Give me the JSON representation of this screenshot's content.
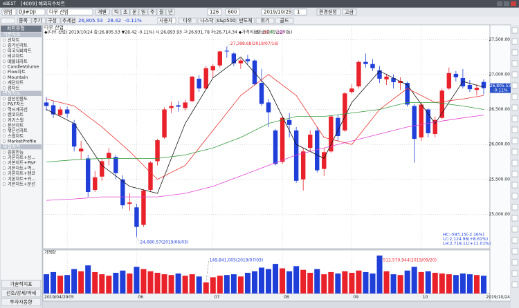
{
  "window": {
    "brand": "eBEST",
    "title": "[4009] 해외지수차트"
  },
  "toolbar": {
    "market": "영업",
    "code": "DJI#DJI",
    "name": "다우 산업",
    "mode": "개별",
    "periods": [
      "틱",
      "초",
      "분",
      "일",
      "주",
      "월",
      "년"
    ],
    "count": "126",
    "max": "600",
    "date": "2019/10/25",
    "unit": "1",
    "settings": "환경설정",
    "advanced": "고급",
    "tabs": [
      "등가표",
      "종목",
      "주기",
      "구성",
      "추세선"
    ],
    "price": "26,805.53",
    "change": "28.42",
    "change_pct": "-0.11%",
    "user": "사용자",
    "quick": [
      "다우",
      "나스닥",
      "s&p500",
      "반도체",
      "위기",
      "골드"
    ]
  },
  "sidebar": {
    "title": "차트유형",
    "groups": [
      {
        "name": "기본차트",
        "items": [
          "선차트",
          "종가선차트",
          "미국식바차트",
          "비교차트",
          "매물대차트",
          "CandleVolume",
          "Flow차트",
          "Mountain",
          "계단차트",
          "점차트"
        ]
      },
      {
        "name": "변형차트",
        "items": [
          "삼선전환도",
          "P&F차트",
          "역시계곡선",
          "렌코차트",
          "카기스윙",
          "분산차트",
          "꺾은선차트",
          "스윙차트",
          "MarketProfile"
        ]
      },
      {
        "name": "복합차트",
        "items": [
          "종합만능",
          "기본차트+삼...",
          "기본차트+P&F",
          "기본차트+역...",
          "기본차트+렌코",
          "기본차트+카...",
          "기본차트+분선"
        ]
      }
    ],
    "buttons": [
      "기술적지표",
      "선호/강세/약세",
      "투자자동향"
    ]
  },
  "chart_data": {
    "type": "candlestick",
    "title": "다우 산업",
    "header": "◆(다우 산업) 2019/10/24 종:26,805.53 ▼28.42 -0.11%) 시:26,893.93 고:26,931.78 저:26,714.34 ◆가격이동평균(종가,단순이동)",
    "ylim": [
      24530,
      27710
    ],
    "yticks": [
      {
        "value": 25000,
        "label": "25,000.00"
      },
      {
        "value": 25500,
        "label": "25,500.00"
      },
      {
        "value": 26000,
        "label": "26,000.00"
      },
      {
        "value": 26500,
        "label": "26,500.00"
      },
      {
        "value": 27000,
        "label": "27,000.00"
      },
      {
        "value": 27500,
        "label": "27,500.00"
      }
    ],
    "xlim": [
      -0.5,
      63.5
    ],
    "xticks": [
      {
        "value": 3,
        "label": "05"
      },
      {
        "value": 13,
        "label": "06"
      },
      {
        "value": 24,
        "label": "07"
      },
      {
        "value": 34,
        "label": "08"
      },
      {
        "value": 44,
        "label": "09"
      },
      {
        "value": 54,
        "label": "10"
      }
    ],
    "start_date": "2019/04/29",
    "end_date": "2019/10/24",
    "grid": true,
    "up_color": "#e8212b",
    "down_color": "#1f3fd8",
    "candles": [
      [
        26600,
        26680,
        26480,
        26550
      ],
      [
        26560,
        26620,
        26380,
        26430
      ],
      [
        26420,
        26540,
        26400,
        26500
      ],
      [
        26500,
        26540,
        26380,
        26440
      ],
      [
        26300,
        26350,
        25900,
        25970
      ],
      [
        25900,
        26050,
        25780,
        25940
      ],
      [
        25800,
        25850,
        25250,
        25320
      ],
      [
        25350,
        25620,
        25320,
        25530
      ],
      [
        25540,
        25800,
        25480,
        25760
      ],
      [
        25800,
        25950,
        25700,
        25880
      ],
      [
        25820,
        25850,
        25500,
        25590
      ],
      [
        25500,
        25560,
        25080,
        25130
      ],
      [
        25150,
        25300,
        25050,
        25170
      ],
      [
        25100,
        25150,
        24680.57,
        24820
      ],
      [
        24850,
        25360,
        24820,
        25340
      ],
      [
        25350,
        25760,
        25330,
        25740
      ],
      [
        25760,
        26080,
        25700,
        26060
      ],
      [
        26100,
        26530,
        26080,
        26500
      ],
      [
        26520,
        26610,
        26450,
        26550
      ],
      [
        26560,
        26620,
        26470,
        26540
      ],
      [
        26520,
        26640,
        26480,
        26600
      ],
      [
        26620,
        26980,
        26600,
        26970
      ],
      [
        26940,
        26990,
        26750,
        26800
      ],
      [
        26800,
        27120,
        26780,
        27090
      ],
      [
        27060,
        27150,
        26950,
        27120
      ],
      [
        27130,
        27340,
        27100,
        27330
      ],
      [
        27340,
        27398.68,
        27240,
        27330
      ],
      [
        27300,
        27320,
        27120,
        27160
      ],
      [
        27160,
        27230,
        27080,
        27200
      ],
      [
        27220,
        27280,
        27150,
        27190
      ],
      [
        27200,
        27220,
        26840,
        26860
      ],
      [
        26880,
        27080,
        26550,
        26580
      ],
      [
        26600,
        26650,
        26250,
        26460
      ],
      [
        26200,
        26220,
        25700,
        25720
      ],
      [
        25750,
        26400,
        25720,
        26380
      ],
      [
        26350,
        26450,
        26100,
        26280
      ],
      [
        26200,
        26250,
        25450,
        25480
      ],
      [
        25500,
        25950,
        25340,
        25900
      ],
      [
        25950,
        26200,
        25900,
        26140
      ],
      [
        26200,
        26250,
        25600,
        25630
      ],
      [
        25650,
        25950,
        25550,
        25890
      ],
      [
        25900,
        26420,
        25880,
        26400
      ],
      [
        26380,
        26420,
        26050,
        26120
      ],
      [
        26200,
        26750,
        26180,
        26730
      ],
      [
        26750,
        26860,
        26720,
        26800
      ],
      [
        26830,
        27200,
        26800,
        27180
      ],
      [
        27180,
        27300,
        27100,
        27150
      ],
      [
        27150,
        27220,
        27050,
        27090
      ],
      [
        27060,
        27120,
        26880,
        26940
      ],
      [
        26930,
        27010,
        26850,
        26970
      ],
      [
        26950,
        27000,
        26800,
        26890
      ],
      [
        26880,
        26960,
        26780,
        26910
      ],
      [
        26880,
        26900,
        26540,
        26570
      ],
      [
        26550,
        26580,
        25740,
        26080
      ],
      [
        26100,
        26600,
        26050,
        26570
      ],
      [
        26500,
        26520,
        26100,
        26160
      ],
      [
        26150,
        26400,
        26100,
        26350
      ],
      [
        26380,
        26800,
        26360,
        26770
      ],
      [
        26800,
        27100,
        26780,
        27020
      ],
      [
        27010,
        27050,
        26900,
        26960
      ],
      [
        26950,
        27080,
        26800,
        26830
      ],
      [
        26850,
        26920,
        26750,
        26790
      ],
      [
        26780,
        26860,
        26700,
        26810
      ],
      [
        26893.93,
        26931.78,
        26714.34,
        26805.53
      ]
    ],
    "ma": {
      "x": [
        0,
        4,
        8,
        12,
        16,
        20,
        24,
        28,
        32,
        36,
        40,
        44,
        48,
        52,
        56,
        60,
        63
      ],
      "series": [
        {
          "name": "5",
          "color": "#111111",
          "values": [
            26500,
            26300,
            25700,
            25400,
            25300,
            26300,
            26950,
            27250,
            26800,
            26000,
            25800,
            26600,
            27050,
            26850,
            26300,
            26900,
            26820
          ]
        },
        {
          "name": "20",
          "color": "#e83030",
          "values": [
            26650,
            26550,
            26250,
            25900,
            25500,
            25700,
            26200,
            26700,
            27000,
            26700,
            26100,
            26000,
            26500,
            26800,
            26600,
            26650,
            26700
          ]
        },
        {
          "name": "60",
          "color": "#2e9a3a",
          "values": [
            25750,
            25780,
            25800,
            25800,
            25800,
            25850,
            25950,
            26100,
            26300,
            26400,
            26400,
            26450,
            26500,
            26600,
            26600,
            26550,
            26500
          ]
        },
        {
          "name": "120",
          "color": "#e040d0",
          "values": [
            25200,
            25220,
            25250,
            25250,
            25250,
            25300,
            25400,
            25550,
            25700,
            25850,
            25950,
            26050,
            26150,
            26250,
            26320,
            26380,
            26420
          ]
        }
      ]
    },
    "annotations": [
      {
        "text": "27,398.68(2019/07/16)",
        "x": 26,
        "y": 27398.68
      },
      {
        "text": "24,680.57(2019/06/03)",
        "x": 13,
        "y": 24680.57
      }
    ],
    "last_label": "26,805.53",
    "last_pct": "-0.11%",
    "stats": [
      "HC:-593.15(-2.16%)",
      "LC:2,124.96(+8.61%)",
      "LH:2,718.11(+11.01%)"
    ],
    "volume": {
      "title": "거래량",
      "ylim": [
        0,
        560000000
      ],
      "values": [
        260000000,
        290000000,
        240000000,
        250000000,
        330000000,
        300000000,
        380000000,
        290000000,
        260000000,
        240000000,
        280000000,
        310000000,
        270000000,
        360000000,
        330000000,
        300000000,
        280000000,
        260000000,
        250000000,
        270000000,
        240000000,
        260000000,
        230000000,
        149841005,
        220000000,
        240000000,
        250000000,
        260000000,
        230000000,
        280000000,
        300000000,
        350000000,
        330000000,
        400000000,
        340000000,
        300000000,
        370000000,
        320000000,
        280000000,
        330000000,
        260000000,
        290000000,
        270000000,
        300000000,
        280000000,
        310000000,
        290000000,
        270000000,
        512570944,
        300000000,
        260000000,
        250000000,
        310000000,
        360000000,
        290000000,
        300000000,
        280000000,
        270000000,
        260000000,
        250000000,
        270000000,
        260000000,
        250000000,
        240000000
      ],
      "annotations": [
        {
          "text": "149,841,005(2019/07/03)",
          "x": 23
        },
        {
          "text": "512,570,944(2019/09/20)",
          "x": 48
        }
      ]
    }
  }
}
